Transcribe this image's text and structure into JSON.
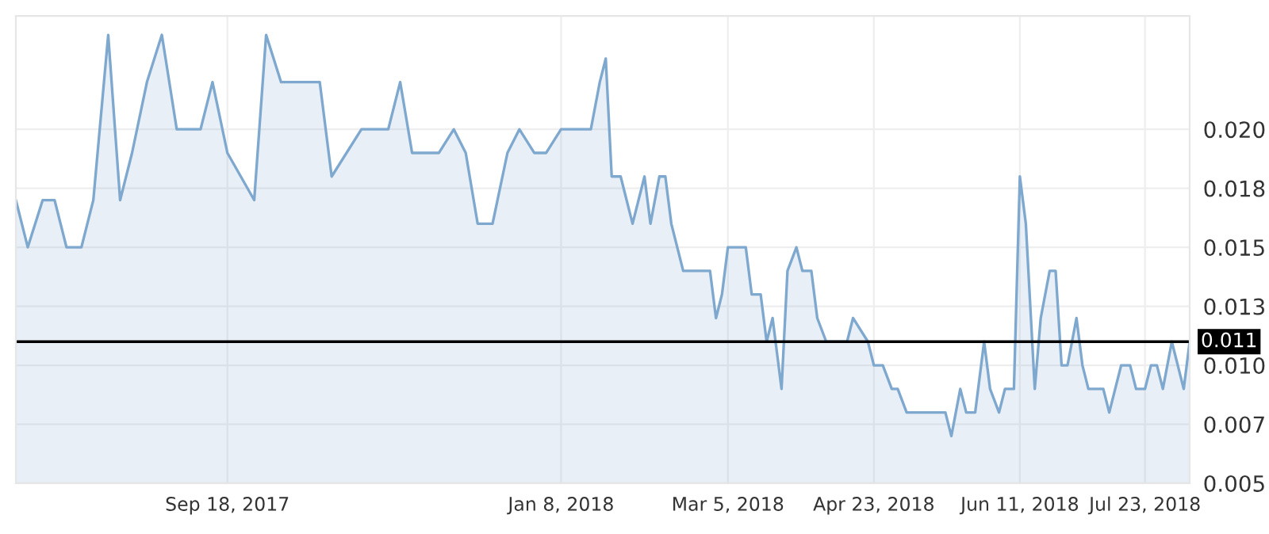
{
  "chart_data": {
    "type": "area",
    "x": [
      "2017-07-09",
      "2017-07-13",
      "2017-07-18",
      "2017-07-22",
      "2017-07-26",
      "2017-07-31",
      "2017-08-04",
      "2017-08-09",
      "2017-08-13",
      "2017-08-17",
      "2017-08-22",
      "2017-08-27",
      "2017-09-01",
      "2017-09-09",
      "2017-09-13",
      "2017-09-18",
      "2017-09-27",
      "2017-10-01",
      "2017-10-06",
      "2017-10-19",
      "2017-10-23",
      "2017-11-02",
      "2017-11-11",
      "2017-11-15",
      "2017-11-19",
      "2017-11-28",
      "2017-12-03",
      "2017-12-07",
      "2017-12-11",
      "2017-12-16",
      "2017-12-21",
      "2017-12-25",
      "2017-12-30",
      "2018-01-03",
      "2018-01-08",
      "2018-01-18",
      "2018-01-21",
      "2018-01-23",
      "2018-01-25",
      "2018-01-28",
      "2018-02-01",
      "2018-02-05",
      "2018-02-07",
      "2018-02-10",
      "2018-02-12",
      "2018-02-14",
      "2018-02-18",
      "2018-02-27",
      "2018-03-01",
      "2018-03-03",
      "2018-03-05",
      "2018-03-11",
      "2018-03-13",
      "2018-03-16",
      "2018-03-18",
      "2018-03-20",
      "2018-03-23",
      "2018-03-25",
      "2018-03-28",
      "2018-03-30",
      "2018-04-02",
      "2018-04-04",
      "2018-04-07",
      "2018-04-14",
      "2018-04-16",
      "2018-04-21",
      "2018-04-23",
      "2018-04-26",
      "2018-04-29",
      "2018-05-01",
      "2018-05-04",
      "2018-05-17",
      "2018-05-19",
      "2018-05-22",
      "2018-05-24",
      "2018-05-27",
      "2018-05-30",
      "2018-06-01",
      "2018-06-04",
      "2018-06-06",
      "2018-06-09",
      "2018-06-11",
      "2018-06-13",
      "2018-06-16",
      "2018-06-18",
      "2018-06-21",
      "2018-06-23",
      "2018-06-25",
      "2018-06-27",
      "2018-06-30",
      "2018-07-02",
      "2018-07-04",
      "2018-07-09",
      "2018-07-11",
      "2018-07-15",
      "2018-07-18",
      "2018-07-20",
      "2018-07-23",
      "2018-07-25",
      "2018-07-27",
      "2018-07-29",
      "2018-08-01",
      "2018-08-05",
      "2018-08-07"
    ],
    "series": [
      {
        "color": "#7fa8cf",
        "values": [
          0.017,
          0.015,
          0.017,
          0.017,
          0.015,
          0.015,
          0.017,
          0.024,
          0.017,
          0.019,
          0.022,
          0.024,
          0.02,
          0.02,
          0.022,
          0.019,
          0.017,
          0.024,
          0.022,
          0.022,
          0.018,
          0.02,
          0.02,
          0.022,
          0.019,
          0.019,
          0.02,
          0.019,
          0.016,
          0.016,
          0.019,
          0.02,
          0.019,
          0.019,
          0.02,
          0.02,
          0.022,
          0.023,
          0.018,
          0.018,
          0.016,
          0.018,
          0.016,
          0.018,
          0.018,
          0.016,
          0.014,
          0.014,
          0.012,
          0.013,
          0.015,
          0.015,
          0.013,
          0.013,
          0.011,
          0.012,
          0.009,
          0.014,
          0.015,
          0.014,
          0.014,
          0.012,
          0.011,
          0.011,
          0.012,
          0.011,
          0.01,
          0.01,
          0.009,
          0.009,
          0.008,
          0.008,
          0.007,
          0.009,
          0.008,
          0.008,
          0.011,
          0.009,
          0.008,
          0.009,
          0.009,
          0.018,
          0.016,
          0.009,
          0.012,
          0.014,
          0.014,
          0.01,
          0.01,
          0.012,
          0.01,
          0.009,
          0.009,
          0.008,
          0.01,
          0.01,
          0.009,
          0.009,
          0.01,
          0.01,
          0.009,
          0.011,
          0.009,
          0.011
        ]
      }
    ],
    "xlim": [
      "2017-07-09",
      "2018-08-07"
    ],
    "xticks": [
      {
        "value": "2017-09-18",
        "label": "Sep 18, 2017"
      },
      {
        "value": "2018-01-08",
        "label": "Jan 8, 2018"
      },
      {
        "value": "2018-03-05",
        "label": "Mar 5, 2018"
      },
      {
        "value": "2018-04-23",
        "label": "Apr 23, 2018"
      },
      {
        "value": "2018-06-11",
        "label": "Jun 11, 2018"
      },
      {
        "value": "2018-07-23",
        "label": "Jul 23, 2018"
      }
    ],
    "ylim": [
      0.005,
      0.0248
    ],
    "yticks": [
      0.005,
      {
        "value": 0.0075,
        "label": "0.007"
      },
      {
        "value": 0.01,
        "label": "0.010"
      },
      {
        "value": 0.0125,
        "label": "0.013"
      },
      0.015,
      {
        "value": 0.0175,
        "label": "0.018"
      },
      {
        "value": 0.02,
        "label": "0.020"
      }
    ],
    "ref_lines": [
      {
        "axis": "y",
        "value": 0.011,
        "label": "0.011",
        "color": "#000000"
      }
    ],
    "grid": true
  }
}
